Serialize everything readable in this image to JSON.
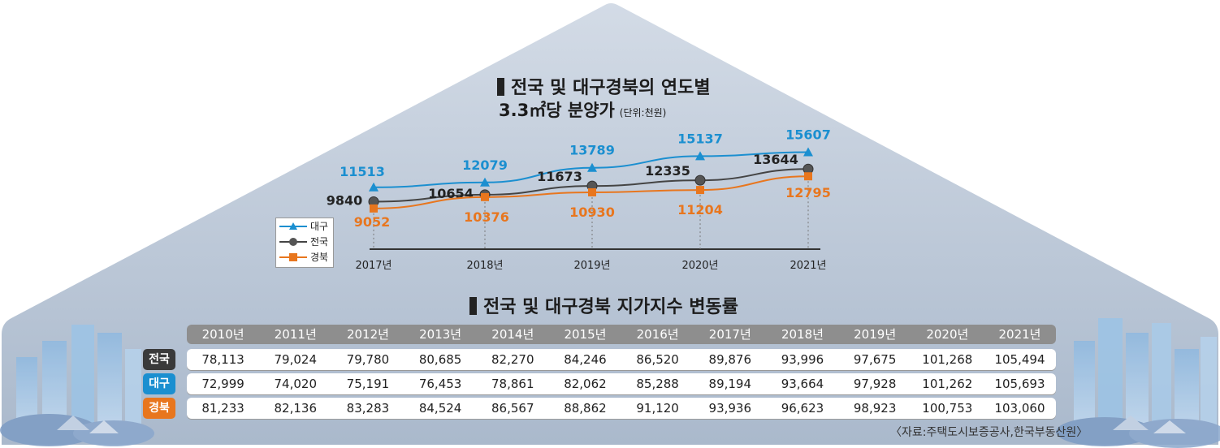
{
  "chart_data": [
    {
      "type": "line",
      "title": "전국 및 대구경북의 연도별",
      "subtitle": "3.3㎡당 분양가",
      "unit": "(단위:천원)",
      "categories": [
        "2017년",
        "2018년",
        "2019년",
        "2020년",
        "2021년"
      ],
      "series": [
        {
          "name": "대구",
          "values": [
            11513,
            12079,
            13789,
            15137,
            15607
          ],
          "color": "#1b8fd0",
          "marker": "triangle"
        },
        {
          "name": "전국",
          "values": [
            9840,
            10654,
            11673,
            12335,
            13644
          ],
          "color": "#444444",
          "marker": "circle"
        },
        {
          "name": "경북",
          "values": [
            9052,
            10376,
            10930,
            11204,
            12795
          ],
          "color": "#e8761e",
          "marker": "square"
        }
      ],
      "value_labels": {
        "대구": [
          "11513",
          "12079",
          "13789",
          "15137",
          "15607"
        ],
        "전국": [
          "9840",
          "10654",
          "11673",
          "12335",
          "13644"
        ],
        "경북": [
          "9052",
          "10376",
          "10930",
          "11204",
          "12795"
        ]
      },
      "legend": "bottom-left"
    },
    {
      "type": "table",
      "title": "전국 및 대구경북 지가지수 변동률",
      "columns": [
        "2010년",
        "2011년",
        "2012년",
        "2013년",
        "2014년",
        "2015년",
        "2016년",
        "2017년",
        "2018년",
        "2019년",
        "2020년",
        "2021년"
      ],
      "rows": [
        {
          "label": "전국",
          "color": "#3a3a3a",
          "values": [
            "78,113",
            "79,024",
            "79,780",
            "80,685",
            "82,270",
            "84,246",
            "86,520",
            "89,876",
            "93,996",
            "97,675",
            "101,268",
            "105,494"
          ]
        },
        {
          "label": "대구",
          "color": "#1b8fd0",
          "values": [
            "72,999",
            "74,020",
            "75,191",
            "76,453",
            "78,861",
            "82,062",
            "85,288",
            "89,194",
            "93,664",
            "97,928",
            "101,262",
            "105,693"
          ]
        },
        {
          "label": "경북",
          "color": "#e8761e",
          "values": [
            "81,233",
            "82,136",
            "83,283",
            "84,524",
            "86,567",
            "88,862",
            "91,120",
            "93,936",
            "96,623",
            "98,923",
            "100,753",
            "103,060"
          ]
        }
      ]
    }
  ],
  "source": "〈자료:주택도시보증공사,한국부동산원〉"
}
